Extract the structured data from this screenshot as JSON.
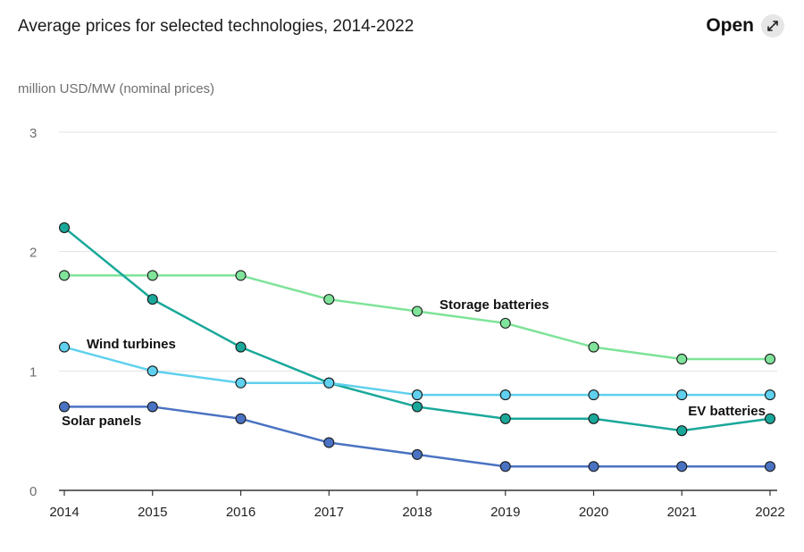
{
  "header": {
    "title": "Average prices for selected technologies, 2014-2022",
    "open_label": "Open"
  },
  "chart_data": {
    "type": "line",
    "title": "Average prices for selected technologies, 2014-2022",
    "ylabel": "million USD/MW (nominal prices)",
    "xlabel": "",
    "x": [
      "2014",
      "2015",
      "2016",
      "2017",
      "2018",
      "2019",
      "2020",
      "2021",
      "2022"
    ],
    "ylim": [
      0,
      3
    ],
    "yticks": [
      "0",
      "1",
      "2",
      "3"
    ],
    "grid": true,
    "series": [
      {
        "name": "Storage batteries",
        "color": "#7fe39a",
        "values": [
          1.8,
          1.8,
          1.8,
          1.6,
          1.5,
          1.4,
          1.2,
          1.1,
          1.1
        ]
      },
      {
        "name": "EV batteries",
        "color": "#1aa89a",
        "values": [
          2.2,
          1.6,
          1.2,
          0.9,
          0.7,
          0.6,
          0.6,
          0.5,
          0.6
        ]
      },
      {
        "name": "Wind turbines",
        "color": "#5fd0ee",
        "values": [
          1.2,
          1.0,
          0.9,
          0.9,
          0.8,
          0.8,
          0.8,
          0.8,
          0.8
        ]
      },
      {
        "name": "Solar panels",
        "color": "#4a72c2",
        "values": [
          0.7,
          0.7,
          0.6,
          0.4,
          0.3,
          0.2,
          0.2,
          0.2,
          0.2
        ]
      }
    ]
  }
}
